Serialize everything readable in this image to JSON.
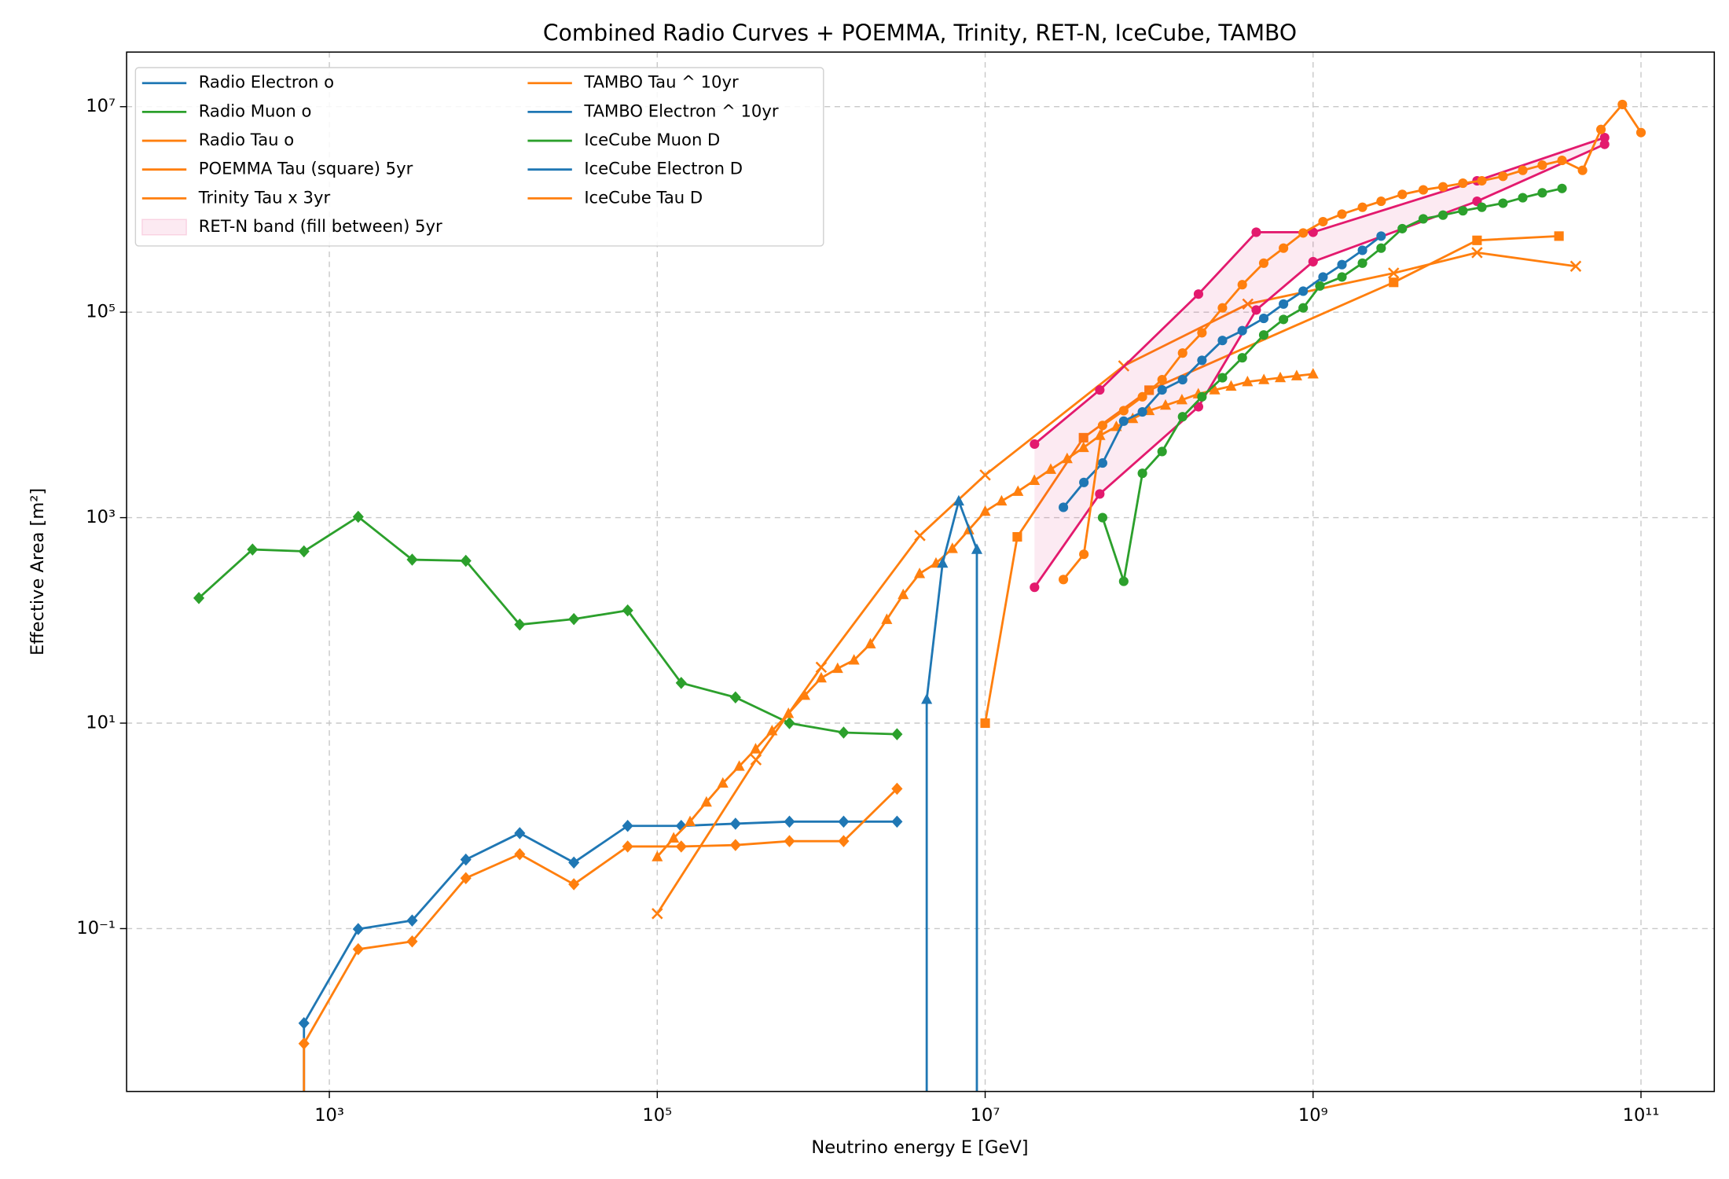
{
  "chart_data": {
    "type": "line",
    "title": "Combined Radio Curves + POEMMA, Trinity, RET-N, IceCube, TAMBO",
    "x_label": "Neutrino energy E [GeV]",
    "y_label": "Effective Area [m²]",
    "log_x": true,
    "log_y": true,
    "grid": true,
    "legend": "upper left",
    "xlim": [
      58,
      280000000000
    ],
    "ylim": [
      0.0026,
      34000000
    ],
    "xticks": [
      {
        "value": 1000,
        "label": "10³"
      },
      {
        "value": 100000,
        "label": "10⁵"
      },
      {
        "value": 10000000,
        "label": "10⁷"
      },
      {
        "value": 1000000000,
        "label": "10⁹"
      },
      {
        "value": 100000000000,
        "label": "10¹¹"
      }
    ],
    "yticks": [
      {
        "value": 0.1,
        "label": "10⁻¹"
      },
      {
        "value": 10,
        "label": "10¹"
      },
      {
        "value": 1000,
        "label": "10³"
      },
      {
        "value": 100000,
        "label": "10⁵"
      },
      {
        "value": 10000000,
        "label": "10⁷"
      }
    ],
    "series": [
      {
        "name": "Radio Electron o",
        "color": "#1f77b4",
        "marker": "diamond",
        "x": [
          700,
          700,
          1500,
          3200,
          6800,
          14500,
          31000,
          66000,
          140000,
          300000,
          640000,
          1370000,
          2900000
        ],
        "values": [
          0.001,
          0.012,
          0.099,
          0.12,
          0.47,
          0.85,
          0.44,
          1.0,
          1.0,
          1.05,
          1.1,
          1.1,
          1.1
        ]
      },
      {
        "name": "Radio Muon o",
        "color": "#2ca02c",
        "marker": "diamond",
        "x": [
          160,
          340,
          700,
          1500,
          3200,
          6800,
          14500,
          31000,
          66000,
          140000,
          300000,
          640000,
          1370000,
          2900000
        ],
        "values": [
          165,
          490,
          470,
          1020,
          390,
          380,
          91,
          103,
          125,
          24.6,
          17.8,
          10,
          8.1,
          7.8
        ]
      },
      {
        "name": "Radio Tau o",
        "color": "#ff7f0e",
        "marker": "diamond",
        "x": [
          700,
          700,
          1500,
          3200,
          6800,
          14500,
          31000,
          66000,
          140000,
          300000,
          640000,
          1370000,
          2900000
        ],
        "values": [
          0.001,
          0.0076,
          0.063,
          0.075,
          0.31,
          0.53,
          0.27,
          0.63,
          0.63,
          0.65,
          0.71,
          0.71,
          2.3
        ]
      },
      {
        "name": "POEMMA Tau (square) 5yr",
        "color": "#ff7f0e",
        "marker": "square",
        "x": [
          10000000,
          15700000,
          39800000,
          100000000,
          3100000000,
          10000000000,
          31600000000
        ],
        "values": [
          10,
          650,
          6000,
          17400,
          195000,
          500000,
          550000
        ]
      },
      {
        "name": "Trinity Tau x 3yr",
        "color": "#ff7f0e",
        "marker": "x",
        "x": [
          100000,
          400000,
          1000000,
          4000000,
          10000000,
          70000000,
          400000000,
          3100000000,
          10000000000,
          40000000000
        ],
        "values": [
          0.14,
          4.4,
          35,
          670,
          2600,
          30000,
          120000,
          240000,
          380000,
          280000
        ]
      },
      {
        "name": "RET-N band (fill between) 5yr",
        "color": "#e31a6e",
        "fill_between": true,
        "x": [
          20000000,
          50000000,
          200000000,
          450000000,
          1000000000,
          10000000000,
          60000000000
        ],
        "upper": [
          5200,
          17500,
          150000,
          600000,
          600000,
          1900000,
          5000000
        ],
        "lower": [
          210,
          1700,
          12000,
          105000,
          310000,
          1200000,
          4300000
        ]
      },
      {
        "name": "TAMBO Tau ^ 10yr",
        "color": "#ff7f0e",
        "marker": "triangle",
        "x": [
          100000,
          125900,
          158500,
          199500,
          251200,
          316200,
          398100,
          501200,
          631000,
          794300,
          1000000,
          1259000,
          1585000,
          1995000,
          2512000,
          3162000,
          3981000,
          5012000,
          6310000,
          7943000,
          10000000,
          12590000,
          15850000,
          19950000,
          25120000,
          31620000,
          39810000,
          50120000,
          63100000,
          79430000,
          100000000,
          125900000,
          158500000,
          199500000,
          251200000,
          316200000,
          398100000,
          501200000,
          631000000,
          794300000,
          1000000000
        ],
        "values": [
          0.5,
          0.76,
          1.1,
          1.7,
          2.6,
          3.8,
          5.6,
          8.4,
          12.4,
          18.6,
          27.5,
          34,
          41,
          59,
          102,
          178,
          285,
          360,
          500,
          760,
          1150,
          1450,
          1800,
          2300,
          2950,
          3750,
          4800,
          6300,
          7700,
          9200,
          11000,
          12400,
          14000,
          16000,
          17500,
          19000,
          21000,
          22000,
          23000,
          24000,
          25000
        ]
      },
      {
        "name": "TAMBO Electron ^ 10yr",
        "color": "#1f77b4",
        "marker": "triangle",
        "x": [
          4400000,
          4400000,
          5500000,
          6900000,
          8900000,
          8900000
        ],
        "values": [
          0.001,
          17,
          360,
          1450,
          490,
          0.001
        ]
      },
      {
        "name": "IceCube Muon D",
        "color": "#2ca02c",
        "marker": "circle",
        "x": [
          52000000,
          70000000,
          91000000,
          120000000,
          160000000,
          210000000,
          280000000,
          370000000,
          500000000,
          660000000,
          870000000,
          1100000000,
          1500000000,
          2000000000,
          2600000000,
          3500000000,
          4700000000,
          6200000000,
          8200000000,
          10700000000,
          14400000000,
          19000000000,
          25000000000,
          33000000000
        ],
        "values": [
          1000,
          240,
          2700,
          4400,
          9600,
          15000,
          23000,
          36000,
          60000,
          85000,
          110000,
          180000,
          220000,
          300000,
          420000,
          650000,
          810000,
          880000,
          970000,
          1050000,
          1150000,
          1300000,
          1450000,
          1600000
        ]
      },
      {
        "name": "IceCube Electron D",
        "color": "#1f77b4",
        "marker": "circle",
        "x": [
          30000000,
          40000000,
          52000000,
          70000000,
          91000000,
          120000000,
          160000000,
          210000000,
          280000000,
          370000000,
          500000000,
          660000000,
          870000000,
          1150000000,
          1500000000,
          2000000000,
          2600000000
        ],
        "values": [
          1260,
          2200,
          3400,
          8700,
          10700,
          17500,
          22000,
          34000,
          53000,
          66000,
          87000,
          120000,
          160000,
          220000,
          290000,
          400000,
          550000
        ]
      },
      {
        "name": "IceCube Tau D",
        "color": "#ff7f0e",
        "marker": "circle",
        "x": [
          30000000,
          40000000,
          52000000,
          70000000,
          91000000,
          120000000,
          160000000,
          210000000,
          280000000,
          370000000,
          500000000,
          660000000,
          870000000,
          1150000000,
          1500000000,
          2000000000,
          2600000000,
          3500000000,
          4700000000,
          6200000000,
          8200000000,
          10700000000,
          14400000000,
          19000000000,
          25000000000,
          33000000000,
          44000000000,
          57000000000,
          77000000000,
          100000000000
        ],
        "values": [
          250,
          440,
          7900,
          11000,
          15000,
          22000,
          40000,
          63000,
          110000,
          185000,
          300000,
          420000,
          590000,
          760000,
          900000,
          1050000,
          1200000,
          1400000,
          1550000,
          1660000,
          1800000,
          1900000,
          2100000,
          2400000,
          2700000,
          3000000,
          2400000,
          6000000,
          10500000,
          5600000
        ]
      }
    ]
  }
}
